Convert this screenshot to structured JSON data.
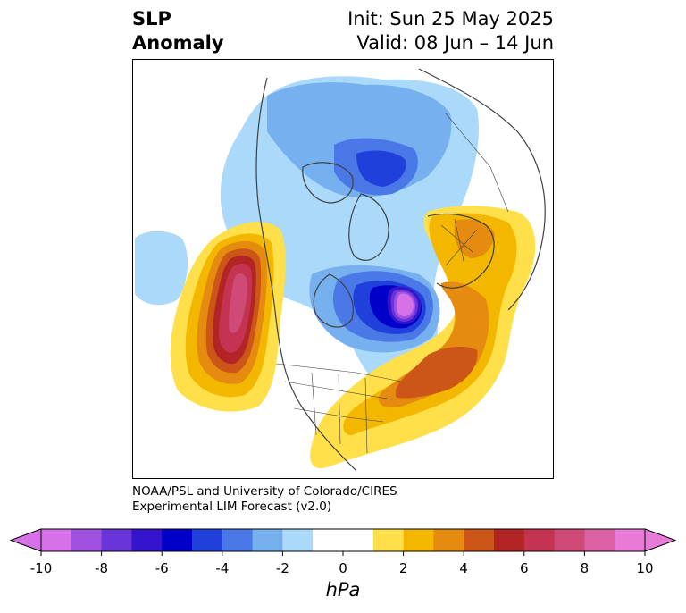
{
  "title": {
    "left_line1": "SLP",
    "left_line2": "Anomaly",
    "right_line1": "Init: Sun 25 May 2025",
    "right_line2": "Valid: 08 Jun – 14 Jun"
  },
  "credit": {
    "line1": "NOAA/PSL and University of Colorado/CIRES",
    "line2": "Experimental LIM Forecast (v2.0)"
  },
  "colorbar": {
    "units": "hPa",
    "min": -10,
    "max": 10,
    "step": 1,
    "extend": "both",
    "tick_labels": [
      "-10",
      "-8",
      "-6",
      "-4",
      "-2",
      "0",
      "2",
      "4",
      "6",
      "8",
      "10"
    ],
    "tick_values": [
      -10,
      -8,
      -6,
      -4,
      -2,
      0,
      2,
      4,
      6,
      8,
      10
    ],
    "colors": [
      "#d671e8",
      "#9f51e0",
      "#6a35d8",
      "#3414cd",
      "#0000c8",
      "#2040dc",
      "#4a78e6",
      "#76b0ef",
      "#aad9fa",
      "#ffffff",
      "#ffffff",
      "#ffe04a",
      "#f3b700",
      "#e58c10",
      "#cb5618",
      "#b32424",
      "#c43452",
      "#cf4a77",
      "#dc62a3",
      "#e97bd8"
    ],
    "under_color": "#d671e8",
    "over_color": "#e97bd8"
  },
  "map": {
    "projection": "polar stereographic",
    "features": [
      "anomaly-contours",
      "coastlines",
      "country-borders",
      "state-borders"
    ],
    "highs": [
      "north-pacific",
      "north-atlantic",
      "northern-europe"
    ],
    "lows": [
      "arctic-siberia",
      "hudson-bay-greenland"
    ]
  }
}
